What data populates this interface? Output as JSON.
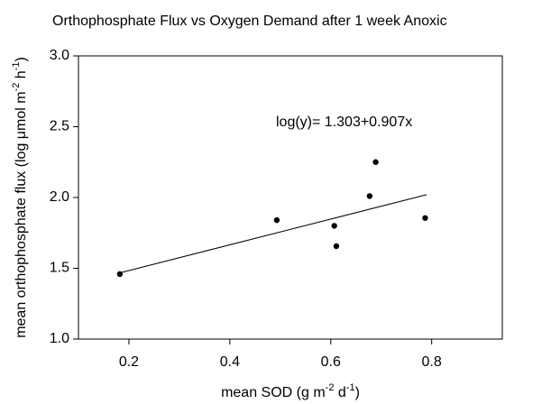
{
  "chart_data": {
    "type": "scatter",
    "title": "Orthophosphate Flux vs Oxygen Demand after 1 week Anoxic",
    "xlabel": [
      "mean SOD (g m",
      "-2",
      " d",
      "-1",
      ")"
    ],
    "ylabel": [
      "mean orthophosphate flux (log μmol m",
      "-2",
      " h",
      "-1",
      ")"
    ],
    "annotation": "log(y)= 1.303+0.907x",
    "x": [
      0.182,
      0.493,
      0.607,
      0.611,
      0.677,
      0.689,
      0.787
    ],
    "values": [
      1.459,
      1.84,
      1.8,
      1.656,
      2.01,
      2.25,
      1.855
    ],
    "color": "#000000",
    "fit": {
      "x": [
        0.18,
        0.79
      ],
      "values": [
        1.466,
        2.02
      ]
    },
    "xlim": [
      0.1,
      0.94
    ],
    "ylim": [
      1,
      3
    ],
    "xticks": [
      0.2,
      0.4,
      0.6,
      0.8
    ],
    "yticks": [
      {
        "value": 1,
        "label": "1.0"
      },
      1.5,
      {
        "value": 2,
        "label": "2.0"
      },
      2.5,
      {
        "value": 3,
        "label": "3.0"
      }
    ]
  }
}
